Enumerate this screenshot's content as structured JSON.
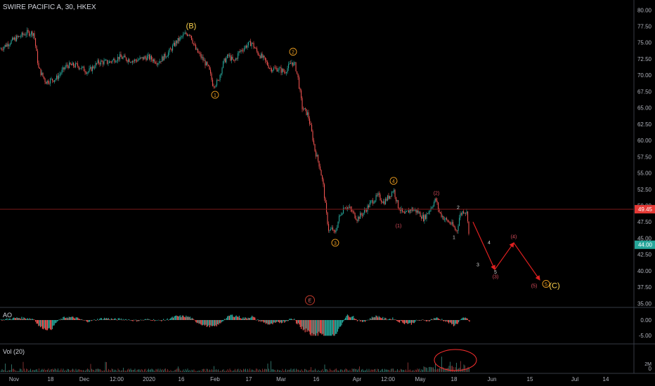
{
  "header": {
    "title": "SWIRE PACIFIC A, 30, HKEX"
  },
  "colors": {
    "up": "#26a69a",
    "down": "#ef5350",
    "wave": "#f0a020",
    "sub": "#e05060",
    "annotation": "#ff3030",
    "axis_text": "#b2b5be"
  },
  "chart_data": {
    "type": "candlestick",
    "title": "SWIRE PACIFIC A, 30, HKEX",
    "y_ticks": [
      "80.00",
      "77.50",
      "75.00",
      "72.50",
      "70.00",
      "67.50",
      "65.00",
      "62.50",
      "60.00",
      "57.50",
      "55.00",
      "52.50",
      "50.00",
      "47.50",
      "45.00",
      "42.50",
      "40.00",
      "37.50",
      "35.00"
    ],
    "ylim": [
      34.5,
      81.0
    ],
    "x_ticks": [
      "Nov",
      "18",
      "Dec",
      "12:00",
      "2020",
      "16",
      "Feb",
      "17",
      "Mar",
      "16",
      "Apr",
      "12:00",
      "May",
      "18",
      "Jun",
      "15",
      "Jul",
      "14"
    ],
    "price_path": [
      [
        0,
        74.0
      ],
      [
        20,
        75.5
      ],
      [
        38,
        76.5
      ],
      [
        48,
        76.5
      ],
      [
        55,
        71.0
      ],
      [
        65,
        69.0
      ],
      [
        80,
        69.5
      ],
      [
        95,
        71.5
      ],
      [
        110,
        71.5
      ],
      [
        125,
        70.5
      ],
      [
        140,
        72.0
      ],
      [
        155,
        72.0
      ],
      [
        170,
        72.8
      ],
      [
        190,
        72.2
      ],
      [
        210,
        72.8
      ],
      [
        225,
        72.0
      ],
      [
        240,
        73.5
      ],
      [
        250,
        75.0
      ],
      [
        262,
        76.2
      ],
      [
        270,
        76.5
      ],
      [
        278,
        74.0
      ],
      [
        290,
        72.2
      ],
      [
        297,
        71.0
      ],
      [
        303,
        68.5
      ],
      [
        310,
        69.0
      ],
      [
        318,
        72.0
      ],
      [
        325,
        73.0
      ],
      [
        333,
        72.0
      ],
      [
        340,
        73.5
      ],
      [
        350,
        74.5
      ],
      [
        358,
        75.0
      ],
      [
        366,
        73.5
      ],
      [
        375,
        72.5
      ],
      [
        385,
        71.0
      ],
      [
        395,
        71.0
      ],
      [
        405,
        70.5
      ],
      [
        415,
        72.0
      ],
      [
        420,
        71.5
      ],
      [
        424,
        69.5
      ],
      [
        430,
        65.0
      ],
      [
        438,
        64.0
      ],
      [
        443,
        61.5
      ],
      [
        448,
        58.5
      ],
      [
        455,
        56.0
      ],
      [
        460,
        53.0
      ],
      [
        464,
        49.0
      ],
      [
        468,
        46.0
      ],
      [
        473,
        46.5
      ],
      [
        476,
        45.5
      ],
      [
        482,
        48.0
      ],
      [
        490,
        50.0
      ],
      [
        498,
        49.5
      ],
      [
        508,
        48.0
      ],
      [
        518,
        49.0
      ],
      [
        528,
        50.5
      ],
      [
        538,
        51.5
      ],
      [
        546,
        50.5
      ],
      [
        554,
        51.5
      ],
      [
        560,
        52.5
      ],
      [
        566,
        50.0
      ],
      [
        575,
        48.5
      ],
      [
        585,
        49.5
      ],
      [
        595,
        49.0
      ],
      [
        603,
        48.0
      ],
      [
        612,
        49.5
      ],
      [
        620,
        51.0
      ],
      [
        625,
        49.0
      ],
      [
        632,
        48.0
      ],
      [
        642,
        47.2
      ],
      [
        650,
        46.0
      ],
      [
        654,
        48.5
      ],
      [
        660,
        49.3
      ],
      [
        665,
        48.8
      ],
      [
        668,
        44.0
      ]
    ],
    "current_price": "44.00",
    "reference_price": "49.45",
    "wave_labels": [
      {
        "text": "(B)",
        "x": 272,
        "price": 77.6
      },
      {
        "text": "1",
        "x": 306,
        "price": 67.0
      },
      {
        "text": "2",
        "x": 417,
        "price": 73.6
      },
      {
        "text": "3",
        "x": 477,
        "price": 44.3
      },
      {
        "text": "4",
        "x": 560,
        "price": 53.8
      },
      {
        "text": "5",
        "x": 777,
        "price": 38.0
      },
      {
        "text": "(C)",
        "x": 789,
        "price": 37.8
      }
    ],
    "sub_labels": [
      {
        "text": "(1)",
        "x": 567,
        "price": 47.0
      },
      {
        "text": "(2)",
        "x": 621,
        "price": 52.0
      },
      {
        "text": "2",
        "x": 652,
        "price": 49.8
      },
      {
        "text": "1",
        "x": 646,
        "price": 45.2
      },
      {
        "text": "3",
        "x": 680,
        "price": 41.0
      },
      {
        "text": "4",
        "x": 696,
        "price": 44.4
      },
      {
        "text": "5",
        "x": 705,
        "price": 39.9
      },
      {
        "text": "(3)",
        "x": 705,
        "price": 39.2
      },
      {
        "text": "(4)",
        "x": 731,
        "price": 45.3
      },
      {
        "text": "(5)",
        "x": 760,
        "price": 37.8
      }
    ],
    "projection": [
      [
        673,
        47.5
      ],
      [
        704,
        40.2
      ],
      [
        731,
        44.3
      ],
      [
        768,
        38.6
      ]
    ],
    "event_marker": {
      "text": "E",
      "x": 441,
      "price": 35.5
    },
    "volume_highlight": {
      "x": 648,
      "y": 513
    }
  },
  "ao_pane": {
    "title": "AO",
    "ticks": [
      "0.00",
      "-5.00"
    ]
  },
  "vol_pane": {
    "title": "Vol (20)",
    "ticks": [
      "2M",
      "0"
    ]
  }
}
